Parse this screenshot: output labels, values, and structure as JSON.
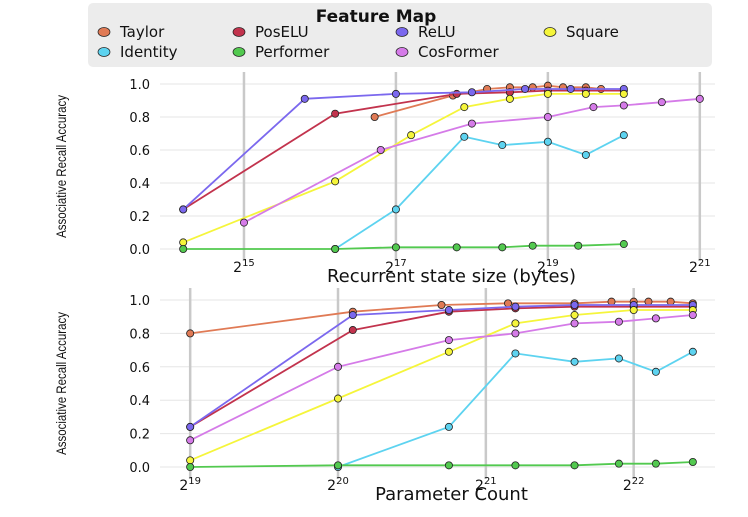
{
  "legend": {
    "title": "Feature Map",
    "placement": "top",
    "entries": [
      {
        "name": "Taylor",
        "color": "#e07a55"
      },
      {
        "name": "PosELU",
        "color": "#c2334d"
      },
      {
        "name": "ReLU",
        "color": "#7b68ee"
      },
      {
        "name": "Square",
        "color": "#f5f53b"
      },
      {
        "name": "Identity",
        "color": "#5dd3f0"
      },
      {
        "name": "Performer",
        "color": "#52c94f"
      },
      {
        "name": "CosFormer",
        "color": "#d57be8"
      }
    ]
  },
  "chart_data": [
    {
      "type": "line",
      "xscale": "log2",
      "xlabel": "Recurrent state size (bytes)",
      "ylabel": "Associative Recall Accuracy",
      "xlim": [
        14,
        21.2
      ],
      "ylim": [
        -0.03,
        1.03
      ],
      "grid": true,
      "xticks": [
        {
          "value": 15,
          "base": "2",
          "exp": "15"
        },
        {
          "value": 17,
          "base": "2",
          "exp": "17"
        },
        {
          "value": 19,
          "base": "2",
          "exp": "19"
        },
        {
          "value": 21,
          "base": "2",
          "exp": "21"
        }
      ],
      "yticks": [
        "0.0",
        "0.2",
        "0.4",
        "0.6",
        "0.8",
        "1.0"
      ],
      "series": [
        {
          "name": "Taylor",
          "x": [
            16.72,
            17.75,
            18.2,
            18.5,
            18.8,
            19.0,
            19.2,
            19.5,
            19.7
          ],
          "y": [
            0.8,
            0.93,
            0.97,
            0.98,
            0.98,
            0.99,
            0.98,
            0.98,
            0.97
          ]
        },
        {
          "name": "PosELU",
          "x": [
            14.2,
            16.2,
            17.8,
            18.5,
            19.0,
            19.5,
            20.0
          ],
          "y": [
            0.24,
            0.82,
            0.94,
            0.95,
            0.96,
            0.96,
            0.96
          ]
        },
        {
          "name": "ReLU",
          "x": [
            14.2,
            15.8,
            17.0,
            18.0,
            18.7,
            19.3,
            20.0
          ],
          "y": [
            0.24,
            0.91,
            0.94,
            0.95,
            0.97,
            0.97,
            0.97
          ]
        },
        {
          "name": "Square",
          "x": [
            14.2,
            16.2,
            17.2,
            17.9,
            18.5,
            19.0,
            19.5,
            20.0
          ],
          "y": [
            0.04,
            0.41,
            0.69,
            0.86,
            0.91,
            0.94,
            0.94,
            0.94
          ]
        },
        {
          "name": "Identity",
          "x": [
            16.2,
            17.0,
            17.9,
            18.4,
            19.0,
            19.5,
            20.0
          ],
          "y": [
            0.0,
            0.24,
            0.68,
            0.63,
            0.65,
            0.57,
            0.69
          ]
        },
        {
          "name": "Performer",
          "x": [
            14.2,
            16.2,
            17.0,
            17.8,
            18.4,
            18.8,
            19.4,
            20.0
          ],
          "y": [
            0.0,
            0.0,
            0.01,
            0.01,
            0.01,
            0.02,
            0.02,
            0.03
          ]
        },
        {
          "name": "CosFormer",
          "x": [
            15.0,
            16.8,
            18.0,
            19.0,
            19.6,
            20.0,
            20.5,
            21.0
          ],
          "y": [
            0.16,
            0.6,
            0.76,
            0.8,
            0.86,
            0.87,
            0.89,
            0.91
          ]
        }
      ]
    },
    {
      "type": "line",
      "xscale": "log2",
      "xlabel": "Parameter Count",
      "ylabel": "Associative Recall Accuracy",
      "xlim": [
        18.85,
        22.55
      ],
      "ylim": [
        -0.03,
        1.03
      ],
      "grid": true,
      "xticks": [
        {
          "value": 19,
          "base": "2",
          "exp": "19"
        },
        {
          "value": 20,
          "base": "2",
          "exp": "20"
        },
        {
          "value": 21,
          "base": "2",
          "exp": "21"
        },
        {
          "value": 22,
          "base": "2",
          "exp": "22"
        }
      ],
      "yticks": [
        "0.0",
        "0.2",
        "0.4",
        "0.6",
        "0.8",
        "1.0"
      ],
      "series": [
        {
          "name": "Taylor",
          "x": [
            19.0,
            20.1,
            20.7,
            21.15,
            21.6,
            21.85,
            22.0,
            22.1,
            22.25,
            22.4
          ],
          "y": [
            0.8,
            0.93,
            0.97,
            0.98,
            0.98,
            0.99,
            0.99,
            0.99,
            0.99,
            0.98
          ]
        },
        {
          "name": "PosELU",
          "x": [
            19.0,
            20.1,
            20.75,
            21.2,
            21.6,
            22.0,
            22.4
          ],
          "y": [
            0.24,
            0.82,
            0.93,
            0.95,
            0.96,
            0.96,
            0.96
          ]
        },
        {
          "name": "ReLU",
          "x": [
            19.0,
            20.1,
            20.75,
            21.2,
            21.6,
            22.0,
            22.4
          ],
          "y": [
            0.24,
            0.91,
            0.94,
            0.96,
            0.97,
            0.97,
            0.97
          ]
        },
        {
          "name": "Square",
          "x": [
            19.0,
            20.0,
            20.75,
            21.2,
            21.6,
            22.0,
            22.4
          ],
          "y": [
            0.04,
            0.41,
            0.69,
            0.86,
            0.91,
            0.94,
            0.94
          ]
        },
        {
          "name": "Identity",
          "x": [
            20.0,
            20.75,
            21.2,
            21.6,
            21.9,
            22.15,
            22.4
          ],
          "y": [
            0.0,
            0.24,
            0.68,
            0.63,
            0.65,
            0.57,
            0.69
          ]
        },
        {
          "name": "Performer",
          "x": [
            19.0,
            20.0,
            20.75,
            21.2,
            21.6,
            21.9,
            22.15,
            22.4
          ],
          "y": [
            0.0,
            0.01,
            0.01,
            0.01,
            0.01,
            0.02,
            0.02,
            0.03
          ]
        },
        {
          "name": "CosFormer",
          "x": [
            19.0,
            20.0,
            20.75,
            21.2,
            21.6,
            21.9,
            22.15,
            22.4
          ],
          "y": [
            0.16,
            0.6,
            0.76,
            0.8,
            0.86,
            0.87,
            0.89,
            0.91
          ]
        }
      ]
    }
  ]
}
